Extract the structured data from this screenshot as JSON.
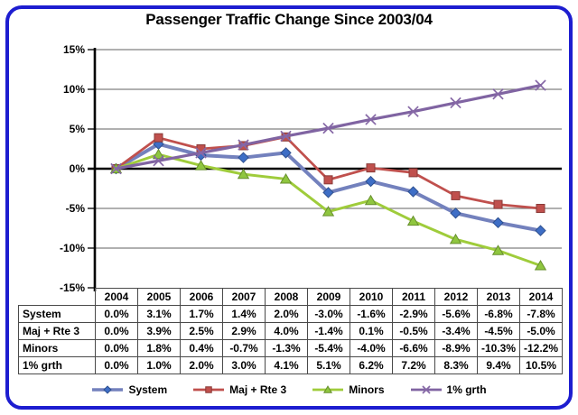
{
  "title": "Passenger Traffic Change Since 2003/04",
  "colors": {
    "frame_border": "#1d1dd0",
    "gridline": "#808080",
    "axis": "#000000",
    "system_line": "#7381bd",
    "system_marker": "#3e6ec6",
    "maj_rte3": "#c0504d",
    "minors_line": "#9fcc3b",
    "minors_marker": "#8fc63f",
    "one_pct_grth": "#8064a2"
  },
  "chart_data": {
    "type": "line",
    "title": "Passenger Traffic Change Since 2003/04",
    "categories": [
      "2004",
      "2005",
      "2006",
      "2007",
      "2008",
      "2009",
      "2010",
      "2011",
      "2012",
      "2013",
      "2014"
    ],
    "series": [
      {
        "name": "System",
        "marker": "diamond",
        "color": "#7381bd",
        "marker_color": "#3e6ec6",
        "values": [
          0.0,
          3.1,
          1.7,
          1.4,
          2.0,
          -3.0,
          -1.6,
          -2.9,
          -5.6,
          -6.8,
          -7.8
        ]
      },
      {
        "name": "Maj + Rte 3",
        "marker": "square",
        "color": "#c0504d",
        "marker_color": "#c0504d",
        "values": [
          0.0,
          3.9,
          2.5,
          2.9,
          4.0,
          -1.4,
          0.1,
          -0.5,
          -3.4,
          -4.5,
          -5.0
        ]
      },
      {
        "name": "Minors",
        "marker": "triangle",
        "color": "#9fcc3b",
        "marker_color": "#8fc63f",
        "values": [
          0.0,
          1.8,
          0.4,
          -0.7,
          -1.3,
          -5.4,
          -4.0,
          -6.6,
          -8.9,
          -10.3,
          -12.2
        ]
      },
      {
        "name": "1% grth",
        "marker": "x",
        "color": "#8064a2",
        "marker_color": "#8668a6",
        "values": [
          0.0,
          1.0,
          2.0,
          3.0,
          4.1,
          5.1,
          6.2,
          7.2,
          8.3,
          9.4,
          10.5
        ]
      }
    ],
    "ylim": [
      -15,
      15
    ],
    "ytick_step": 5,
    "yticks": [
      "15%",
      "10%",
      "5%",
      "0%",
      "-5%",
      "-10%",
      "-15%"
    ],
    "xlabel": "",
    "ylabel": "",
    "grid": "horizontal",
    "legend_position": "bottom"
  },
  "table": {
    "rows": [
      {
        "label": "System",
        "values": [
          "0.0%",
          "3.1%",
          "1.7%",
          "1.4%",
          "2.0%",
          "-3.0%",
          "-1.6%",
          "-2.9%",
          "-5.6%",
          "-6.8%",
          "-7.8%"
        ]
      },
      {
        "label": "Maj + Rte 3",
        "values": [
          "0.0%",
          "3.9%",
          "2.5%",
          "2.9%",
          "4.0%",
          "-1.4%",
          "0.1%",
          "-0.5%",
          "-3.4%",
          "-4.5%",
          "-5.0%"
        ]
      },
      {
        "label": "Minors",
        "values": [
          "0.0%",
          "1.8%",
          "0.4%",
          "-0.7%",
          "-1.3%",
          "-5.4%",
          "-4.0%",
          "-6.6%",
          "-8.9%",
          "-10.3%",
          "-12.2%"
        ]
      },
      {
        "label": "1% grth",
        "values": [
          "0.0%",
          "1.0%",
          "2.0%",
          "3.0%",
          "4.1%",
          "5.1%",
          "6.2%",
          "7.2%",
          "8.3%",
          "9.4%",
          "10.5%"
        ]
      }
    ]
  },
  "legend": {
    "items": [
      {
        "label": "System"
      },
      {
        "label": "Maj + Rte 3"
      },
      {
        "label": "Minors"
      },
      {
        "label": "1% grth"
      }
    ]
  }
}
